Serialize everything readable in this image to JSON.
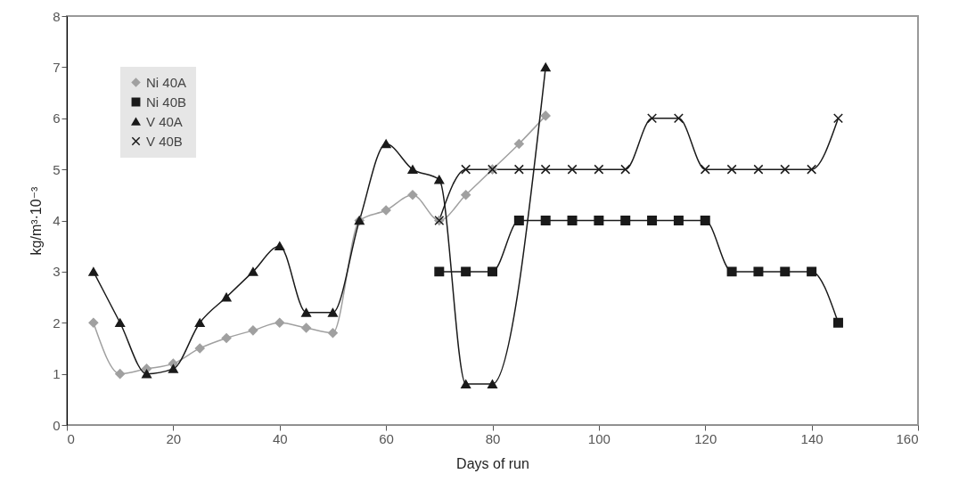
{
  "chart_data": {
    "type": "line",
    "xlabel": "Days of run",
    "ylabel": "kg/m³·10⁻³",
    "xlim": [
      0,
      160
    ],
    "xticks": [
      0,
      20,
      40,
      60,
      80,
      100,
      120,
      140,
      160
    ],
    "ylim": [
      0,
      8
    ],
    "yticks": [
      0,
      1,
      2,
      3,
      4,
      5,
      6,
      7,
      8
    ],
    "grid": false,
    "legend": "top left",
    "series": [
      {
        "name": "Ni 40A",
        "color": "#a0a0a0",
        "marker": "diamond",
        "x": [
          5,
          10,
          15,
          20,
          25,
          30,
          35,
          40,
          45,
          50,
          55,
          60,
          65,
          70,
          75,
          80,
          85,
          90
        ],
        "values": [
          2,
          1,
          1.1,
          1.2,
          1.5,
          1.7,
          1.85,
          2,
          1.9,
          1.8,
          4,
          4.2,
          4.5,
          4,
          4.5,
          5,
          5.5,
          6.05
        ]
      },
      {
        "name": "Ni 40B",
        "color": "#1a1a1a",
        "marker": "square",
        "x": [
          70,
          75,
          80,
          85,
          90,
          95,
          100,
          105,
          110,
          115,
          120,
          125,
          130,
          135,
          140,
          145
        ],
        "values": [
          3,
          3,
          3,
          4,
          4,
          4,
          4,
          4,
          4,
          4,
          4,
          3,
          3,
          3,
          3,
          2
        ]
      },
      {
        "name": "V 40A",
        "color": "#1a1a1a",
        "marker": "triangle",
        "x": [
          5,
          10,
          15,
          20,
          25,
          30,
          35,
          40,
          45,
          50,
          55,
          60,
          65,
          70,
          75,
          80,
          90
        ],
        "values": [
          3,
          2,
          1,
          1.1,
          2,
          2.5,
          3,
          3.5,
          2.2,
          2.2,
          4,
          5.5,
          5,
          4.8,
          0.8,
          0.8,
          7
        ]
      },
      {
        "name": "V 40B",
        "color": "#1a1a1a",
        "marker": "cross",
        "x": [
          70,
          75,
          80,
          85,
          90,
          95,
          100,
          105,
          110,
          115,
          120,
          125,
          130,
          135,
          140,
          145
        ],
        "values": [
          4,
          5,
          5,
          5,
          5,
          5,
          5,
          5,
          6,
          6,
          5,
          5,
          5,
          5,
          5,
          6
        ]
      }
    ]
  }
}
